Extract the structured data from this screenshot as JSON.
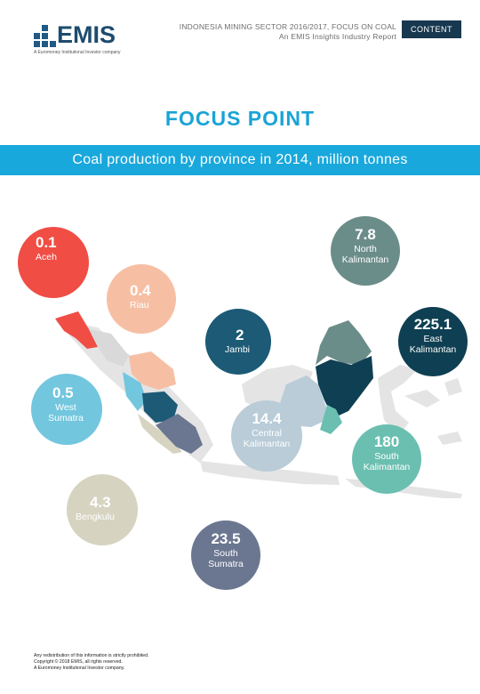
{
  "header": {
    "logo_text": "EMIS",
    "logo_sub": "A Euromoney Institutional Investor company",
    "report_title_line1": "INDONESIA MINING SECTOR 2016/2017, FOCUS ON COAL",
    "report_title_line2": "An EMIS Insights Industry Report",
    "content_button": "CONTENT"
  },
  "main": {
    "title": "FOCUS POINT",
    "banner": "Coal production by province in 2014, million tonnes"
  },
  "colors": {
    "aceh": "#f04d45",
    "riau": "#f6bfa4",
    "jambi": "#1c5a76",
    "west_sumatra": "#72c6de",
    "bengkulu": "#d6d3c0",
    "south_sumatra": "#6b7690",
    "north_kalimantan": "#6b8d8a",
    "east_kalimantan": "#0e3f52",
    "central_kalimantan": "#b9ccd8",
    "south_kalimantan": "#6bbfb0",
    "land": "#e4e4e4"
  },
  "provinces": [
    {
      "id": "aceh",
      "value": "0.1",
      "name": "Aceh"
    },
    {
      "id": "riau",
      "value": "0.4",
      "name": "Riau"
    },
    {
      "id": "jambi",
      "value": "2",
      "name": "Jambi"
    },
    {
      "id": "west_sumatra",
      "value": "0.5",
      "name": "West Sumatra"
    },
    {
      "id": "bengkulu",
      "value": "4.3",
      "name": "Bengkulu"
    },
    {
      "id": "south_sumatra",
      "value": "23.5",
      "name": "South Sumatra"
    },
    {
      "id": "north_kalimantan",
      "value": "7.8",
      "name": "North Kalimantan"
    },
    {
      "id": "east_kalimantan",
      "value": "225.1",
      "name": "East Kalimantan"
    },
    {
      "id": "central_kalimantan",
      "value": "14.4",
      "name": "Central Kalimantan"
    },
    {
      "id": "south_kalimantan",
      "value": "180",
      "name": "South Kalimantan"
    }
  ],
  "footer": {
    "line1": "Any redistribution of this information is strictly prohibited.",
    "line2": "Copyright © 2018 EMIS, all rights reserved.",
    "line3": "A Euromoney Institutional Investor company."
  }
}
